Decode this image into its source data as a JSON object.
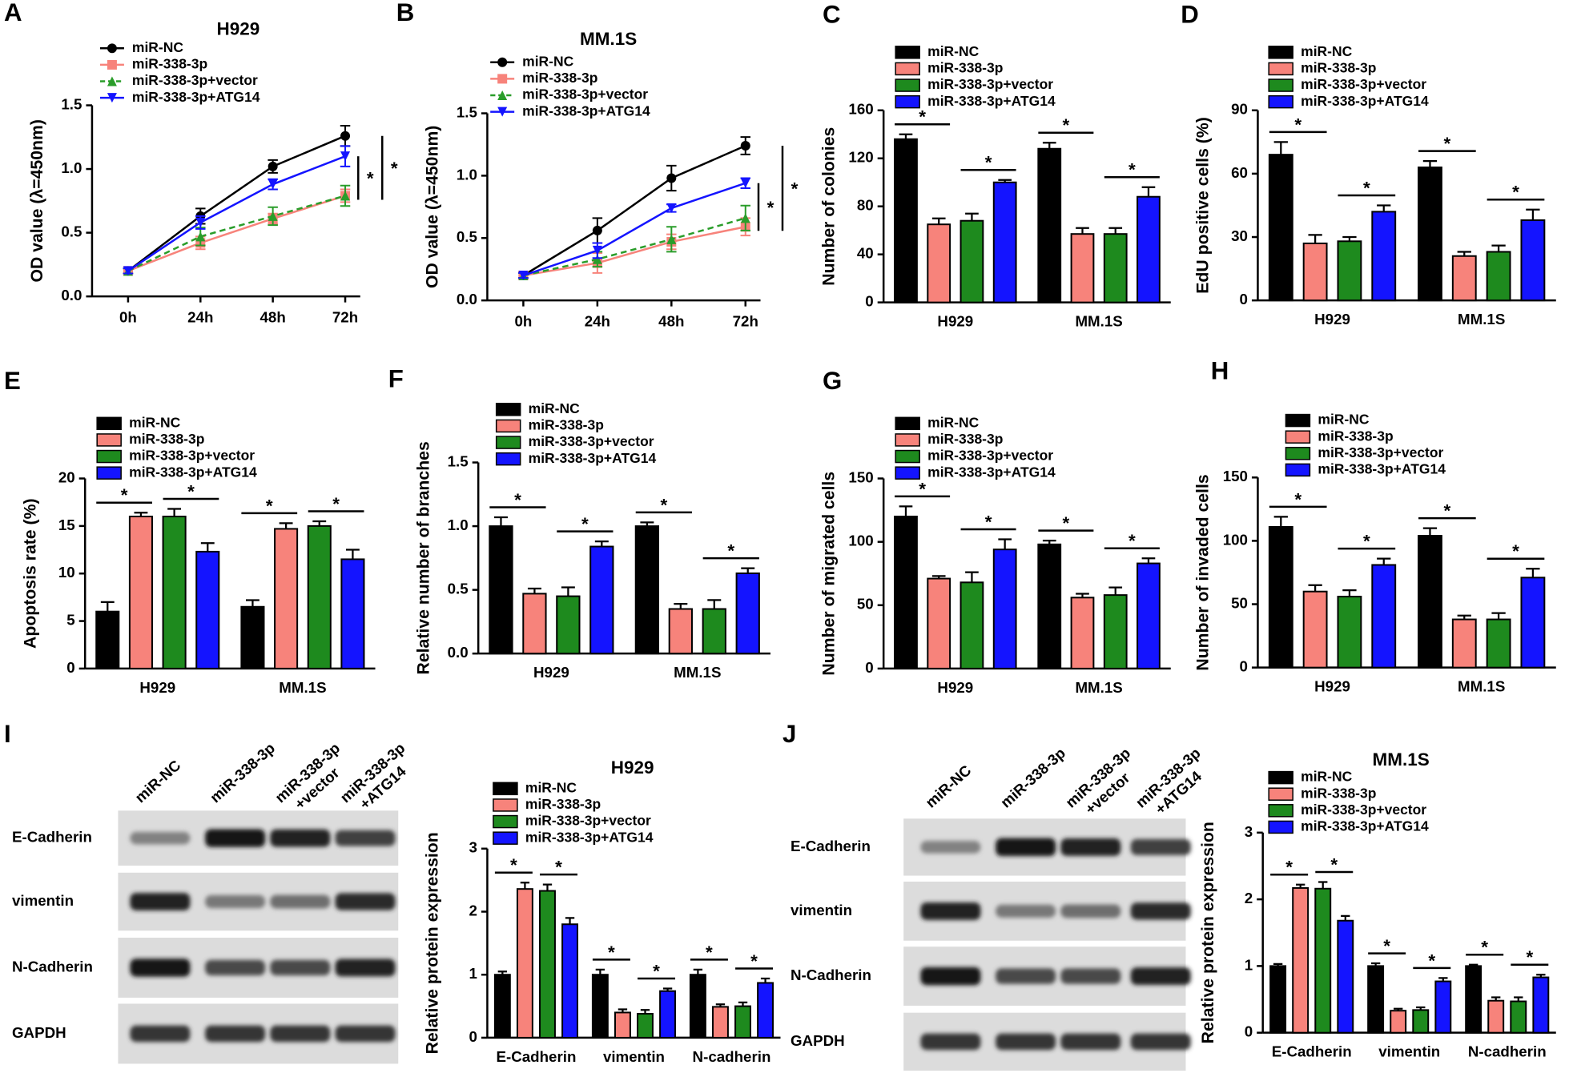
{
  "chart_data": [
    {
      "label": "A",
      "type": "line",
      "title": "H929",
      "y_label": "OD value (λ=450nm)",
      "categories": [
        "0h",
        "24h",
        "48h",
        "72h"
      ],
      "ylim": [
        0,
        1.5
      ],
      "yticks": [
        {
          "value": 0,
          "label": "0.0"
        },
        0.5,
        {
          "value": 1,
          "label": "1.0"
        },
        1.5
      ],
      "series": [
        {
          "name": "miR-NC",
          "color": "#000000",
          "marker": "circle",
          "values": [
            0.2,
            0.63,
            1.02,
            1.26
          ],
          "errors": [
            0.02,
            0.06,
            0.05,
            0.08
          ]
        },
        {
          "name": "miR-338-3p",
          "color": "#f7837b",
          "marker": "square",
          "values": [
            0.2,
            0.42,
            0.61,
            0.79
          ],
          "errors": [
            0.02,
            0.05,
            0.04,
            0.05
          ]
        },
        {
          "name": "miR-338-3p+vector",
          "color": "#2a9d2a",
          "marker": "triangle",
          "dash": true,
          "values": [
            0.2,
            0.47,
            0.63,
            0.79
          ],
          "errors": [
            0.02,
            0.07,
            0.07,
            0.08
          ]
        },
        {
          "name": "miR-338-3p+ATG14",
          "color": "#1414ff",
          "marker": "triangle-down",
          "values": [
            0.2,
            0.58,
            0.88,
            1.1
          ],
          "errors": [
            0.02,
            0.05,
            0.04,
            0.08
          ]
        }
      ],
      "significance": [
        "*",
        "*"
      ]
    },
    {
      "label": "B",
      "type": "line",
      "title": "MM.1S",
      "y_label": "OD value (λ=450nm)",
      "categories": [
        "0h",
        "24h",
        "48h",
        "72h"
      ],
      "ylim": [
        0,
        1.5
      ],
      "yticks": [
        {
          "value": 0,
          "label": "0.0"
        },
        0.5,
        {
          "value": 1,
          "label": "1.0"
        },
        1.5
      ],
      "series": [
        {
          "name": "miR-NC",
          "color": "#000000",
          "marker": "circle",
          "values": [
            0.2,
            0.56,
            0.98,
            1.24
          ],
          "errors": [
            0.02,
            0.1,
            0.1,
            0.07
          ]
        },
        {
          "name": "miR-338-3p",
          "color": "#f7837b",
          "marker": "square",
          "values": [
            0.2,
            0.3,
            0.47,
            0.59
          ],
          "errors": [
            0.03,
            0.08,
            0.06,
            0.07
          ]
        },
        {
          "name": "miR-338-3p+vector",
          "color": "#2a9d2a",
          "marker": "triangle",
          "dash": true,
          "values": [
            0.2,
            0.33,
            0.49,
            0.66
          ],
          "errors": [
            0.02,
            0.06,
            0.1,
            0.1
          ]
        },
        {
          "name": "miR-338-3p+ATG14",
          "color": "#1414ff",
          "marker": "triangle-down",
          "values": [
            0.2,
            0.4,
            0.74,
            0.94
          ],
          "errors": [
            0.02,
            0.06,
            0.03,
            0.04
          ]
        }
      ],
      "significance": [
        "*",
        "*"
      ]
    },
    {
      "label": "C",
      "type": "bar",
      "y_label": "Number of colonies",
      "categories": [
        "H929",
        "MM.1S"
      ],
      "ylim": [
        0,
        160
      ],
      "yticks": [
        0,
        40,
        80,
        120,
        160
      ],
      "series": [
        {
          "name": "miR-NC",
          "color": "#000000",
          "values": [
            136,
            128
          ],
          "errors": [
            4,
            5
          ]
        },
        {
          "name": "miR-338-3p",
          "color": "#f7837b",
          "values": [
            65,
            57
          ],
          "errors": [
            5,
            5
          ]
        },
        {
          "name": "miR-338-3p+vector",
          "color": "#1e8a1e",
          "values": [
            68,
            57
          ],
          "errors": [
            6,
            5
          ]
        },
        {
          "name": "miR-338-3p+ATG14",
          "color": "#1414ff",
          "values": [
            100,
            88
          ],
          "errors": [
            2,
            8
          ]
        }
      ],
      "significance": [
        [
          "*",
          "*"
        ],
        [
          "*",
          "*"
        ]
      ]
    },
    {
      "label": "D",
      "type": "bar",
      "y_label": "EdU positive cells (%)",
      "categories": [
        "H929",
        "MM.1S"
      ],
      "ylim": [
        0,
        90
      ],
      "yticks": [
        0,
        30,
        60,
        90
      ],
      "series": [
        {
          "name": "miR-NC",
          "color": "#000000",
          "values": [
            69,
            63
          ],
          "errors": [
            6,
            3
          ]
        },
        {
          "name": "miR-338-3p",
          "color": "#f7837b",
          "values": [
            27,
            21
          ],
          "errors": [
            4,
            2
          ]
        },
        {
          "name": "miR-338-3p+vector",
          "color": "#1e8a1e",
          "values": [
            28,
            23
          ],
          "errors": [
            2,
            3
          ]
        },
        {
          "name": "miR-338-3p+ATG14",
          "color": "#1414ff",
          "values": [
            42,
            38
          ],
          "errors": [
            3,
            5
          ]
        }
      ],
      "significance": [
        [
          "*",
          "*"
        ],
        [
          "*",
          "*"
        ]
      ]
    },
    {
      "label": "E",
      "type": "bar",
      "y_label": "Apoptosis rate (%)",
      "categories": [
        "H929",
        "MM.1S"
      ],
      "ylim": [
        0,
        20
      ],
      "yticks": [
        0,
        5,
        10,
        15,
        20
      ],
      "series": [
        {
          "name": "miR-NC",
          "color": "#000000",
          "values": [
            6.0,
            6.5
          ],
          "errors": [
            1.0,
            0.7
          ]
        },
        {
          "name": "miR-338-3p",
          "color": "#f7837b",
          "values": [
            16.0,
            14.7
          ],
          "errors": [
            0.4,
            0.6
          ]
        },
        {
          "name": "miR-338-3p+vector",
          "color": "#1e8a1e",
          "values": [
            16.0,
            15.0
          ],
          "errors": [
            0.8,
            0.5
          ]
        },
        {
          "name": "miR-338-3p+ATG14",
          "color": "#1414ff",
          "values": [
            12.3,
            11.5
          ],
          "errors": [
            0.9,
            1.0
          ]
        }
      ],
      "significance": [
        [
          "*",
          "*"
        ],
        [
          "*",
          "*"
        ]
      ]
    },
    {
      "label": "F",
      "type": "bar",
      "y_label": "Relative number of branches",
      "categories": [
        "H929",
        "MM.1S"
      ],
      "ylim": [
        0,
        1.5
      ],
      "yticks": [
        {
          "value": 0,
          "label": "0.0"
        },
        0.5,
        {
          "value": 1,
          "label": "1.0"
        },
        1.5
      ],
      "series": [
        {
          "name": "miR-NC",
          "color": "#000000",
          "values": [
            1.0,
            1.0
          ],
          "errors": [
            0.07,
            0.03
          ]
        },
        {
          "name": "miR-338-3p",
          "color": "#f7837b",
          "values": [
            0.47,
            0.35
          ],
          "errors": [
            0.04,
            0.04
          ]
        },
        {
          "name": "miR-338-3p+vector",
          "color": "#1e8a1e",
          "values": [
            0.45,
            0.35
          ],
          "errors": [
            0.07,
            0.07
          ]
        },
        {
          "name": "miR-338-3p+ATG14",
          "color": "#1414ff",
          "values": [
            0.84,
            0.63
          ],
          "errors": [
            0.04,
            0.04
          ]
        }
      ],
      "significance": [
        [
          "*",
          "*"
        ],
        [
          "*",
          "*"
        ]
      ]
    },
    {
      "label": "G",
      "type": "bar",
      "y_label": "Number of migrated cells",
      "categories": [
        "H929",
        "MM.1S"
      ],
      "ylim": [
        0,
        150
      ],
      "yticks": [
        0,
        50,
        100,
        150
      ],
      "series": [
        {
          "name": "miR-NC",
          "color": "#000000",
          "values": [
            120,
            98
          ],
          "errors": [
            8,
            3
          ]
        },
        {
          "name": "miR-338-3p",
          "color": "#f7837b",
          "values": [
            71,
            56
          ],
          "errors": [
            2,
            3
          ]
        },
        {
          "name": "miR-338-3p+vector",
          "color": "#1e8a1e",
          "values": [
            68,
            58
          ],
          "errors": [
            8,
            6
          ]
        },
        {
          "name": "miR-338-3p+ATG14",
          "color": "#1414ff",
          "values": [
            94,
            83
          ],
          "errors": [
            8,
            4
          ]
        }
      ],
      "significance": [
        [
          "*",
          "*"
        ],
        [
          "*",
          "*"
        ]
      ]
    },
    {
      "label": "H",
      "type": "bar",
      "y_label": "Number of invaded cells",
      "categories": [
        "H929",
        "MM.1S"
      ],
      "ylim": [
        0,
        150
      ],
      "yticks": [
        0,
        50,
        100,
        150
      ],
      "series": [
        {
          "name": "miR-NC",
          "color": "#000000",
          "values": [
            111,
            104
          ],
          "errors": [
            8,
            6
          ]
        },
        {
          "name": "miR-338-3p",
          "color": "#f7837b",
          "values": [
            60,
            38
          ],
          "errors": [
            5,
            3
          ]
        },
        {
          "name": "miR-338-3p+vector",
          "color": "#1e8a1e",
          "values": [
            56,
            38
          ],
          "errors": [
            5,
            5
          ]
        },
        {
          "name": "miR-338-3p+ATG14",
          "color": "#1414ff",
          "values": [
            81,
            71
          ],
          "errors": [
            5,
            7
          ]
        }
      ],
      "significance": [
        [
          "*",
          "*"
        ],
        [
          "*",
          "*"
        ]
      ]
    },
    {
      "type": "bar",
      "title": "H929",
      "y_label": "Relative protein expression",
      "categories": [
        "E-Cadherin",
        "vimentin",
        "N-cadherin"
      ],
      "ylim": [
        0,
        3
      ],
      "yticks": [
        0,
        1,
        2,
        3
      ],
      "series": [
        {
          "name": "miR-NC",
          "color": "#000000",
          "values": [
            1.0,
            1.0,
            1.0
          ],
          "errors": [
            0.05,
            0.08,
            0.08
          ]
        },
        {
          "name": "miR-338-3p",
          "color": "#f7837b",
          "values": [
            2.36,
            0.4,
            0.49
          ],
          "errors": [
            0.1,
            0.05,
            0.04
          ]
        },
        {
          "name": "miR-338-3p+vector",
          "color": "#1e8a1e",
          "values": [
            2.33,
            0.38,
            0.5
          ],
          "errors": [
            0.1,
            0.06,
            0.06
          ]
        },
        {
          "name": "miR-338-3p+ATG14",
          "color": "#1414ff",
          "values": [
            1.8,
            0.74,
            0.87
          ],
          "errors": [
            0.1,
            0.04,
            0.07
          ]
        }
      ],
      "significance": [
        [
          "*",
          "*"
        ],
        [
          "*",
          "*"
        ],
        [
          "*",
          "*"
        ]
      ]
    },
    {
      "type": "bar",
      "title": "MM.1S",
      "y_label": "Relative protein expression",
      "categories": [
        "E-Cadherin",
        "vimentin",
        "N-cadherin"
      ],
      "ylim": [
        0,
        3
      ],
      "yticks": [
        0,
        1,
        2,
        3
      ],
      "series": [
        {
          "name": "miR-NC",
          "color": "#000000",
          "values": [
            1.0,
            1.0,
            1.0
          ],
          "errors": [
            0.03,
            0.04,
            0.02
          ]
        },
        {
          "name": "miR-338-3p",
          "color": "#f7837b",
          "values": [
            2.17,
            0.33,
            0.48
          ],
          "errors": [
            0.05,
            0.03,
            0.05
          ]
        },
        {
          "name": "miR-338-3p+vector",
          "color": "#1e8a1e",
          "values": [
            2.16,
            0.34,
            0.47
          ],
          "errors": [
            0.1,
            0.04,
            0.06
          ]
        },
        {
          "name": "miR-338-3p+ATG14",
          "color": "#1414ff",
          "values": [
            1.68,
            0.77,
            0.83
          ],
          "errors": [
            0.07,
            0.05,
            0.04
          ]
        }
      ],
      "significance": [
        [
          "*",
          "*"
        ],
        [
          "*",
          "*"
        ],
        [
          "*",
          "*"
        ]
      ]
    }
  ],
  "blots": [
    {
      "label": "I",
      "columns": [
        [
          "miR-NC"
        ],
        [
          "miR-338-3p"
        ],
        [
          "miR-338-3p",
          "+vector"
        ],
        [
          "miR-338-3p",
          "+ATG14"
        ]
      ],
      "rows": [
        "E-Cadherin",
        "vimentin",
        "N-Cadherin",
        "GAPDH"
      ]
    },
    {
      "label": "J",
      "columns": [
        [
          "miR-NC"
        ],
        [
          "miR-338-3p"
        ],
        [
          "miR-338-3p",
          "+vector"
        ],
        [
          "miR-338-3p",
          "+ATG14"
        ]
      ],
      "rows": [
        "E-Cadherin",
        "vimentin",
        "N-Cadherin",
        "GAPDH"
      ]
    }
  ]
}
